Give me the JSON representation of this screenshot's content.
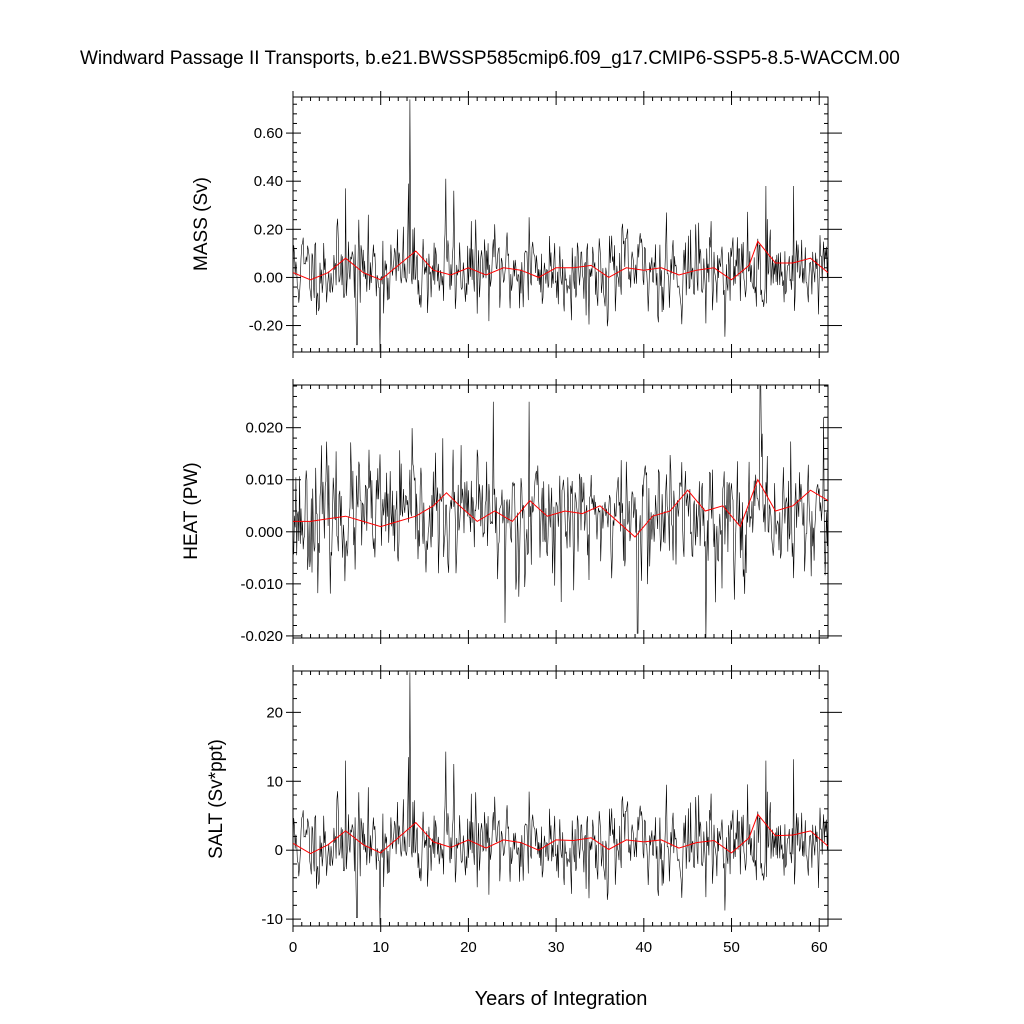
{
  "title": "Windward Passage II Transports, b.e21.BWSSP585cmip6.f09_g17.CMIP6-SSP5-8.5-WACCM.00",
  "xlabel": "Years of Integration",
  "colors": {
    "raw": "#000000",
    "smooth": "#ff0000"
  },
  "chart_data": [
    {
      "type": "line",
      "panel": "mass",
      "ylabel": "MASS (Sv)",
      "xlim": [
        0,
        61
      ],
      "ylim": [
        -0.31,
        0.75
      ],
      "x_ticks": [
        0,
        10,
        20,
        30,
        40,
        50,
        60
      ],
      "y_ticks": [
        -0.2,
        0.0,
        0.2,
        0.4,
        0.6
      ],
      "y_tick_labels": [
        "-0.20",
        "0.00",
        "0.20",
        "0.40",
        "0.60"
      ],
      "raw": {
        "mean": 0.03,
        "sd": 0.085,
        "seed": 11,
        "spikes": [
          [
            6.0,
            0.37
          ],
          [
            7.3,
            -0.28
          ],
          [
            9.9,
            -0.31
          ],
          [
            13.2,
            0.39
          ],
          [
            13.3,
            0.74
          ],
          [
            17.4,
            0.41
          ],
          [
            18.3,
            0.36
          ],
          [
            26.9,
            0.25
          ],
          [
            42.6,
            0.27
          ],
          [
            53.9,
            0.38
          ],
          [
            57.1,
            0.38
          ]
        ]
      },
      "series": [
        {
          "name": "",
          "x": [
            0,
            2,
            4,
            6,
            8,
            10,
            12,
            14,
            16,
            18,
            20,
            22,
            24,
            26,
            28,
            30,
            32,
            34,
            36,
            38,
            40,
            42,
            44,
            46,
            48,
            50,
            52,
            53,
            55,
            57,
            59,
            61
          ],
          "values": [
            0.02,
            -0.01,
            0.02,
            0.08,
            0.02,
            -0.01,
            0.05,
            0.11,
            0.03,
            0.01,
            0.04,
            0.01,
            0.04,
            0.03,
            0.0,
            0.04,
            0.04,
            0.05,
            0.0,
            0.04,
            0.03,
            0.04,
            0.01,
            0.03,
            0.04,
            -0.01,
            0.05,
            0.15,
            0.06,
            0.06,
            0.08,
            0.02
          ]
        }
      ]
    },
    {
      "type": "line",
      "panel": "heat",
      "ylabel": "HEAT (PW)",
      "xlim": [
        0,
        61
      ],
      "ylim": [
        -0.0204,
        0.0282
      ],
      "x_ticks": [
        0,
        10,
        20,
        30,
        40,
        50,
        60
      ],
      "y_ticks": [
        -0.02,
        -0.01,
        0.0,
        0.01,
        0.02
      ],
      "y_tick_labels": [
        "-0.020",
        "-0.010",
        "0.000",
        "0.010",
        "0.020"
      ],
      "raw": {
        "mean": 0.003,
        "sd": 0.0055,
        "seed": 23,
        "spikes": [
          [
            22.8,
            0.025
          ],
          [
            26.9,
            0.025
          ],
          [
            24.2,
            -0.0175
          ],
          [
            39.3,
            -0.0195
          ],
          [
            47.1,
            -0.0204
          ],
          [
            53.3,
            0.028
          ],
          [
            60.5,
            0.022
          ]
        ]
      },
      "series": [
        {
          "name": "",
          "x": [
            0,
            2,
            4,
            6,
            8,
            10,
            12,
            14,
            16,
            17.5,
            19,
            21,
            23,
            25,
            27,
            29,
            31,
            33,
            35,
            37,
            39,
            41,
            43,
            45,
            47,
            49,
            51,
            53,
            55,
            57,
            59,
            61
          ],
          "values": [
            0.002,
            0.002,
            0.0025,
            0.003,
            0.002,
            0.001,
            0.002,
            0.003,
            0.005,
            0.0075,
            0.005,
            0.002,
            0.004,
            0.002,
            0.006,
            0.003,
            0.004,
            0.0035,
            0.005,
            0.002,
            -0.001,
            0.003,
            0.004,
            0.008,
            0.004,
            0.005,
            0.001,
            0.01,
            0.004,
            0.005,
            0.008,
            0.006
          ]
        }
      ]
    },
    {
      "type": "line",
      "panel": "salt",
      "ylabel": "SALT (Sv*ppt)",
      "xlim": [
        0,
        61
      ],
      "ylim": [
        -11.0,
        26.0
      ],
      "x_ticks": [
        0,
        10,
        20,
        30,
        40,
        50,
        60
      ],
      "x_tick_labels": [
        "0",
        "10",
        "20",
        "30",
        "40",
        "50",
        "60"
      ],
      "y_ticks": [
        -10,
        0,
        10,
        20
      ],
      "y_tick_labels": [
        "-10",
        "0",
        "10",
        "20"
      ],
      "raw": {
        "mean": 1.0,
        "sd": 3.0,
        "seed": 11,
        "spikes": [
          [
            6.0,
            13.0
          ],
          [
            7.3,
            -9.8
          ],
          [
            9.9,
            -10.8
          ],
          [
            13.2,
            13.5
          ],
          [
            13.3,
            25.8
          ],
          [
            17.4,
            14.3
          ],
          [
            18.3,
            12.5
          ],
          [
            26.9,
            8.5
          ],
          [
            42.6,
            9.5
          ],
          [
            53.9,
            13.0
          ],
          [
            57.1,
            13.2
          ]
        ]
      },
      "series": [
        {
          "name": "",
          "x": [
            0,
            2,
            4,
            6,
            8,
            10,
            12,
            14,
            16,
            18,
            20,
            22,
            24,
            26,
            28,
            30,
            32,
            34,
            36,
            38,
            40,
            42,
            44,
            46,
            48,
            50,
            52,
            53,
            55,
            57,
            59,
            61
          ],
          "values": [
            1.0,
            -0.5,
            0.8,
            2.8,
            0.8,
            -0.4,
            1.8,
            4.0,
            1.2,
            0.4,
            1.5,
            0.3,
            1.5,
            1.1,
            0.0,
            1.5,
            1.4,
            1.8,
            0.1,
            1.5,
            1.2,
            1.5,
            0.3,
            1.1,
            1.4,
            -0.4,
            1.8,
            5.2,
            2.1,
            2.2,
            2.8,
            0.6
          ]
        }
      ]
    }
  ]
}
